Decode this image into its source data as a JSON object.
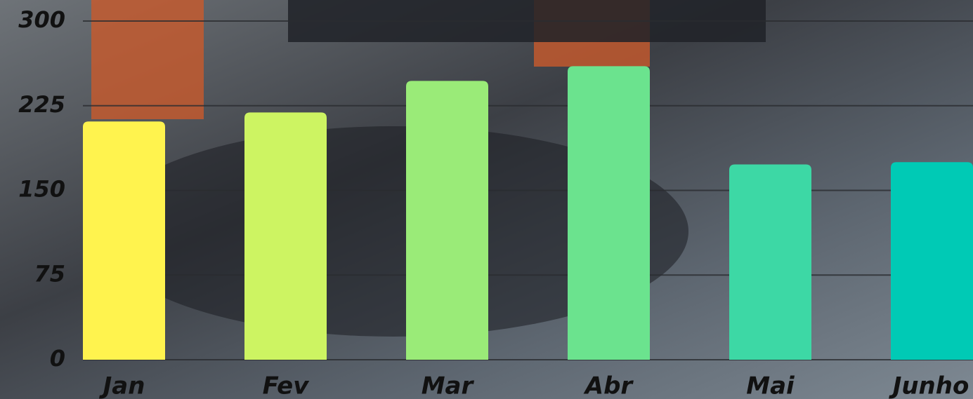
{
  "chart_data": {
    "type": "bar",
    "categories": [
      "Jan",
      "Fev",
      "Mar",
      "Abr",
      "Mai",
      "Junho"
    ],
    "values": [
      211,
      219,
      247,
      260,
      173,
      175
    ],
    "colors": [
      "#fff34e",
      "#cdf462",
      "#9aeb78",
      "#6be38e",
      "#3dd8a5",
      "#00cab5"
    ],
    "ylim": [
      0,
      300
    ],
    "yticks": [
      0,
      75,
      150,
      225,
      300
    ],
    "grid": true
  }
}
